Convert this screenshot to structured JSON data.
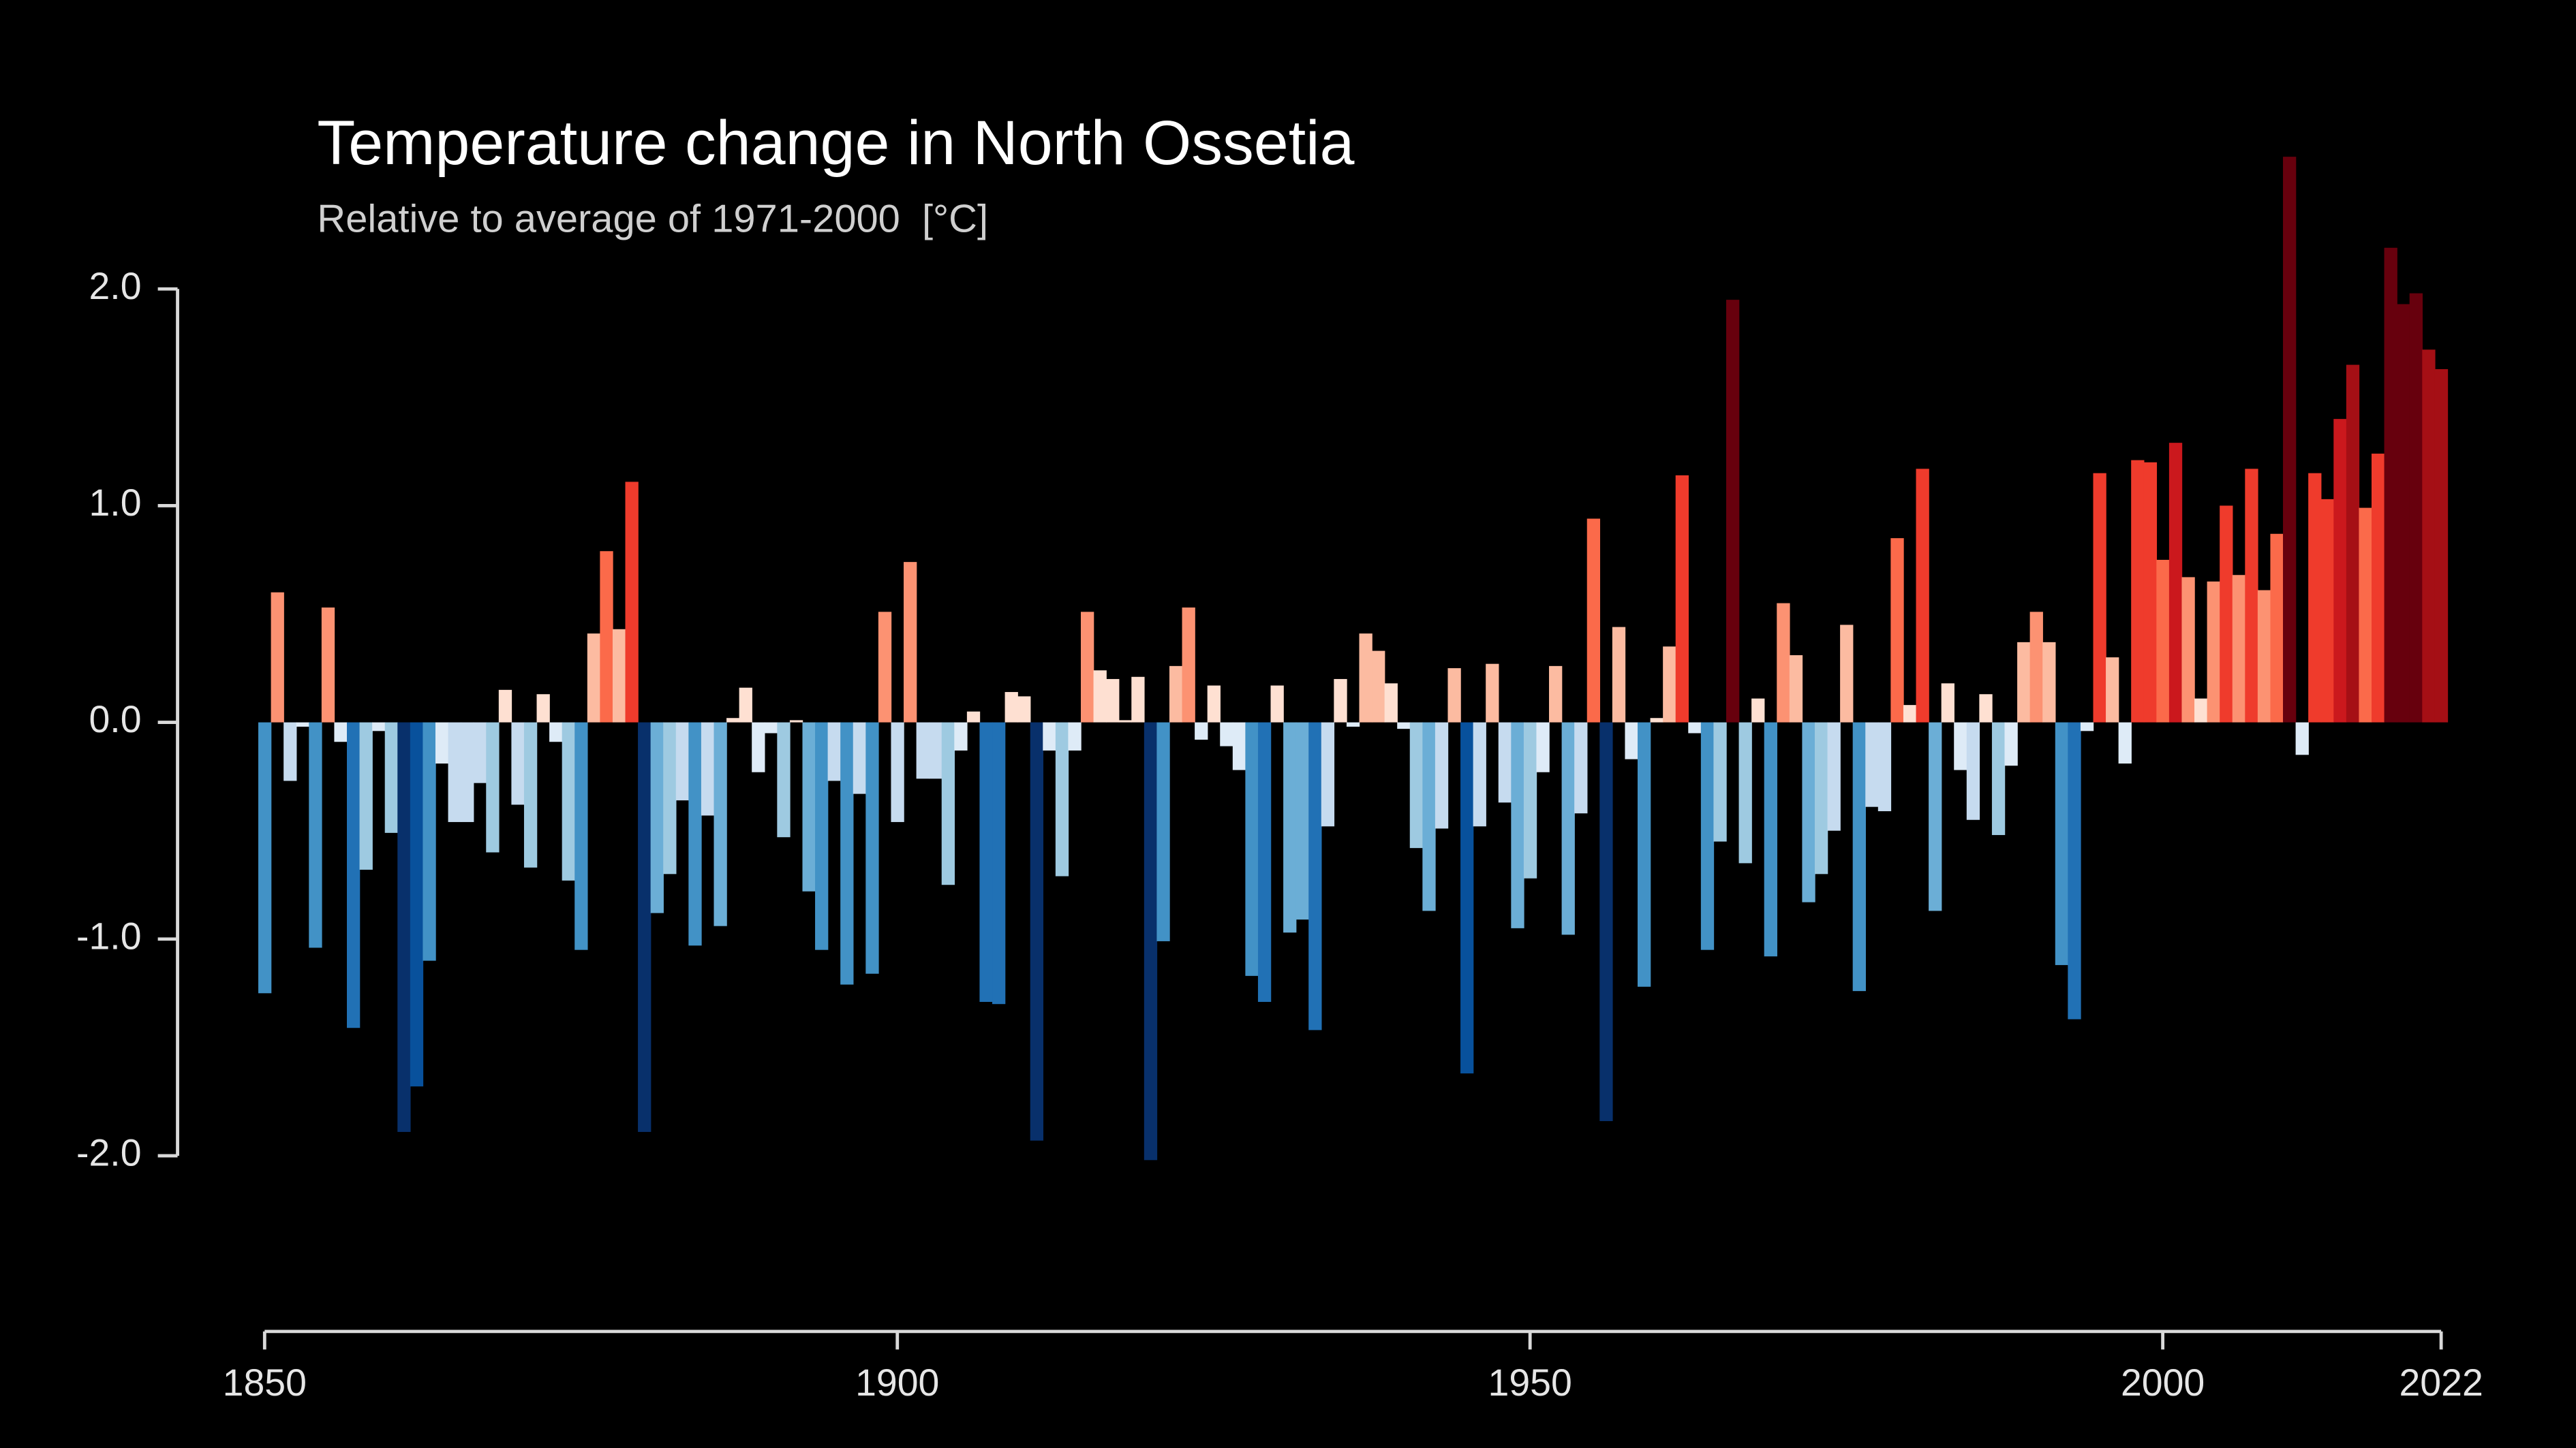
{
  "chart_data": {
    "type": "bar",
    "title": "Temperature change in North Ossetia",
    "subtitle": "Relative to average of 1971-2000  [°C]",
    "x": [
      1850,
      1851,
      1852,
      1853,
      1854,
      1855,
      1856,
      1857,
      1858,
      1859,
      1860,
      1861,
      1862,
      1863,
      1864,
      1865,
      1866,
      1867,
      1868,
      1869,
      1870,
      1871,
      1872,
      1873,
      1874,
      1875,
      1876,
      1877,
      1878,
      1879,
      1880,
      1881,
      1882,
      1883,
      1884,
      1885,
      1886,
      1887,
      1888,
      1889,
      1890,
      1891,
      1892,
      1893,
      1894,
      1895,
      1896,
      1897,
      1898,
      1899,
      1900,
      1901,
      1902,
      1903,
      1904,
      1905,
      1906,
      1907,
      1908,
      1909,
      1910,
      1911,
      1912,
      1913,
      1914,
      1915,
      1916,
      1917,
      1918,
      1919,
      1920,
      1921,
      1922,
      1923,
      1924,
      1925,
      1926,
      1927,
      1928,
      1929,
      1930,
      1931,
      1932,
      1933,
      1934,
      1935,
      1936,
      1937,
      1938,
      1939,
      1940,
      1941,
      1942,
      1943,
      1944,
      1945,
      1946,
      1947,
      1948,
      1949,
      1950,
      1951,
      1952,
      1953,
      1954,
      1955,
      1956,
      1957,
      1958,
      1959,
      1960,
      1961,
      1962,
      1963,
      1964,
      1965,
      1966,
      1967,
      1968,
      1969,
      1970,
      1971,
      1972,
      1973,
      1974,
      1975,
      1976,
      1977,
      1978,
      1979,
      1980,
      1981,
      1982,
      1983,
      1984,
      1985,
      1986,
      1987,
      1988,
      1989,
      1990,
      1991,
      1992,
      1993,
      1994,
      1995,
      1996,
      1997,
      1998,
      1999,
      2000,
      2001,
      2002,
      2003,
      2004,
      2005,
      2006,
      2007,
      2008,
      2009,
      2010,
      2011,
      2012,
      2013,
      2014,
      2015,
      2016,
      2017,
      2018,
      2019,
      2020,
      2021,
      2022
    ],
    "values": [
      -1.25,
      0.6,
      -0.27,
      -0.02,
      -1.04,
      0.53,
      -0.09,
      -1.41,
      -0.68,
      -0.04,
      -0.51,
      -1.89,
      -1.68,
      -1.1,
      -0.19,
      -0.46,
      -0.46,
      -0.28,
      -0.6,
      0.15,
      -0.38,
      -0.67,
      0.13,
      -0.09,
      -0.73,
      -1.05,
      0.41,
      0.79,
      0.43,
      1.11,
      -1.89,
      -0.88,
      -0.7,
      -0.36,
      -1.03,
      -0.43,
      -0.94,
      0.02,
      0.16,
      -0.23,
      -0.05,
      -0.53,
      0.01,
      -0.78,
      -1.05,
      -0.27,
      -1.21,
      -0.33,
      -1.16,
      0.51,
      -0.46,
      0.74,
      -0.26,
      -0.26,
      -0.75,
      -0.13,
      0.05,
      -1.29,
      -1.3,
      0.14,
      0.12,
      -1.93,
      -0.13,
      -0.71,
      -0.13,
      0.51,
      0.24,
      0.2,
      0.01,
      0.21,
      -2.02,
      -1.01,
      0.26,
      0.53,
      -0.08,
      0.17,
      -0.11,
      -0.22,
      -1.17,
      -1.29,
      0.17,
      -0.97,
      -0.91,
      -1.42,
      -0.48,
      0.2,
      -0.02,
      0.41,
      0.33,
      0.18,
      -0.03,
      -0.58,
      -0.87,
      -0.49,
      0.25,
      -1.62,
      -0.48,
      0.27,
      -0.37,
      -0.95,
      -0.72,
      -0.23,
      0.26,
      -0.98,
      -0.42,
      0.94,
      -1.84,
      0.44,
      -0.17,
      -1.22,
      0.02,
      0.35,
      1.14,
      -0.05,
      -1.05,
      -0.55,
      1.95,
      -0.65,
      0.11,
      -1.08,
      0.55,
      0.31,
      -0.83,
      -0.7,
      -0.5,
      0.45,
      -1.24,
      -0.39,
      -0.41,
      0.85,
      0.08,
      1.17,
      -0.87,
      0.18,
      -0.22,
      -0.45,
      0.13,
      -0.52,
      -0.2,
      0.37,
      0.51,
      0.37,
      -1.12,
      -1.37,
      -0.04,
      1.15,
      0.3,
      -0.19,
      1.21,
      1.2,
      0.75,
      1.29,
      0.67,
      0.11,
      0.65,
      1.0,
      0.68,
      1.17,
      0.61,
      0.87,
      2.61,
      -0.15,
      1.15,
      1.03,
      1.4,
      1.65,
      0.99,
      1.24,
      2.19,
      1.93,
      1.98,
      1.72,
      1.63
    ],
    "colormap": [
      "#08306b",
      "#08519c",
      "#2171b5",
      "#4292c6",
      "#6baed6",
      "#9ecae1",
      "#c6dbef",
      "#deebf7",
      "#fee0d2",
      "#fcbba1",
      "#fc9272",
      "#fb6a4a",
      "#ef3b2c",
      "#cb181d",
      "#a50f15",
      "#67000d"
    ],
    "xlim": [
      1850,
      2022
    ],
    "xticks": [
      1850,
      1900,
      1950,
      2000,
      2022
    ],
    "ylim": [
      -2.6,
      2.6
    ],
    "yticks": [
      {
        "value": 2,
        "label": "2.0"
      },
      {
        "value": 1,
        "label": "1.0"
      },
      {
        "value": 0,
        "label": "0.0"
      },
      {
        "value": -1,
        "label": "-1.0"
      },
      {
        "value": -2,
        "label": "-2.0"
      }
    ],
    "grid": false
  }
}
